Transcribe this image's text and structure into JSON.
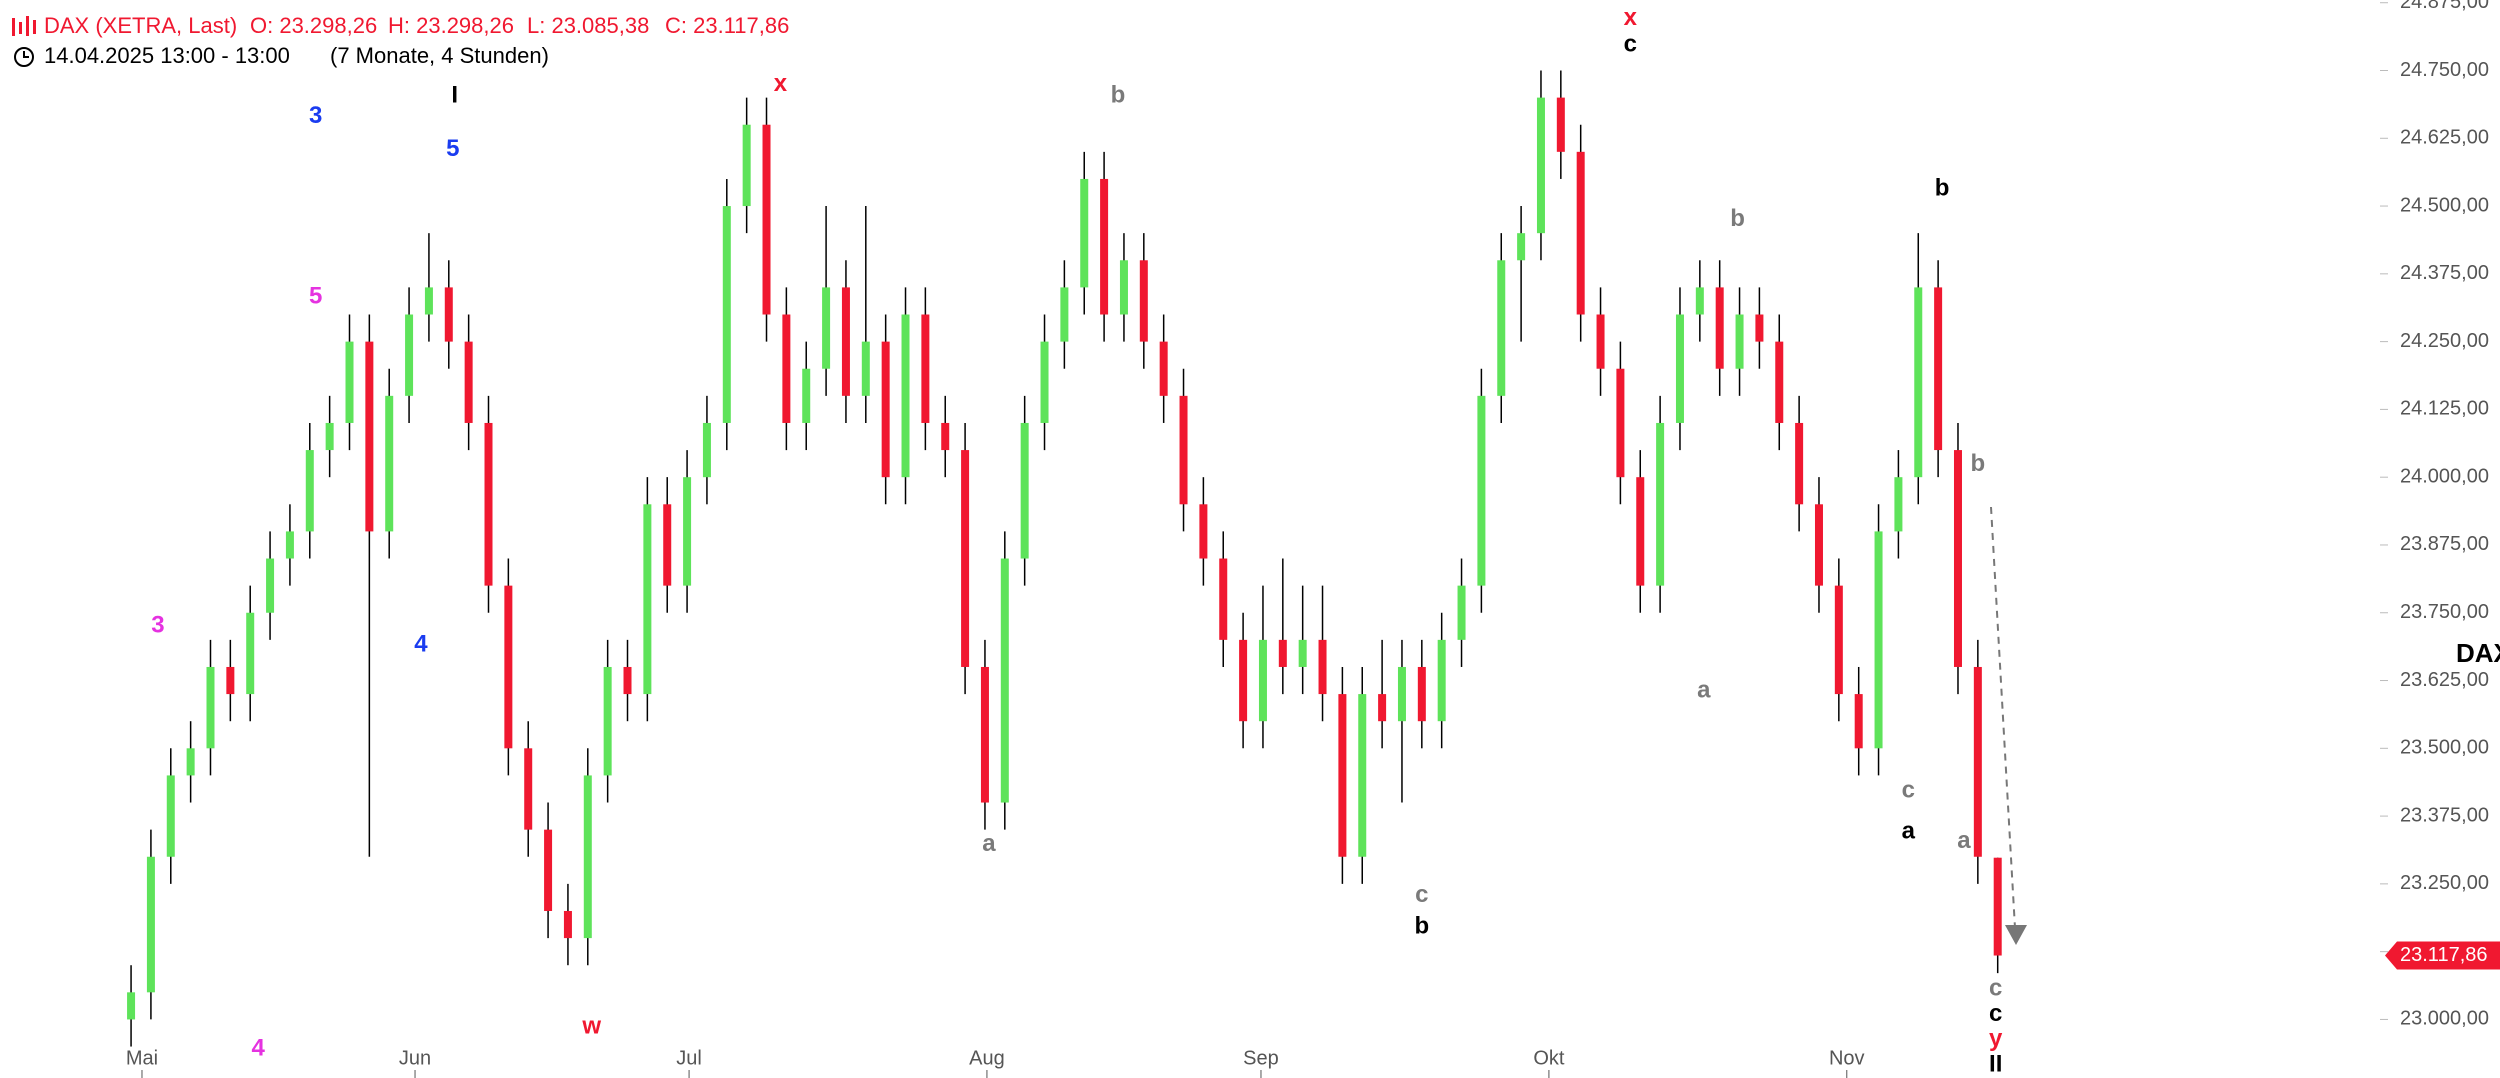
{
  "chart_data": {
    "type": "candlestick",
    "symbol": "DAX (XETRA, Last)",
    "ohlc_labels": [
      "O: 23.298,26",
      "H: 23.298,26",
      "L: 23.085,38",
      "C: 23.117,86"
    ],
    "date_range": "14.04.2025 13:00 - 13:00",
    "span": "(7 Monate, 4 Stunden)",
    "symbol_tag": "DAX",
    "up_color": "#5ee35a",
    "down_color": "#f01830",
    "xlim": [
      -6.6,
      113
    ],
    "xticks": [
      {
        "value": 0.55,
        "label": "Mai"
      },
      {
        "value": 14.3,
        "label": "Jun"
      },
      {
        "value": 28.1,
        "label": "Jul"
      },
      {
        "value": 43.1,
        "label": "Aug"
      },
      {
        "value": 56.9,
        "label": "Sep"
      },
      {
        "value": 71.4,
        "label": "Okt"
      },
      {
        "value": 86.4,
        "label": "Nov"
      }
    ],
    "ylim": [
      22892,
      24880
    ],
    "yticks": [
      {
        "value": 23000,
        "label": "23.000,00"
      },
      {
        "value": 23125,
        "label": "23.125,00"
      },
      {
        "value": 23250,
        "label": "23.250,00"
      },
      {
        "value": 23375,
        "label": "23.375,00"
      },
      {
        "value": 23500,
        "label": "23.500,00"
      },
      {
        "value": 23625,
        "label": "23.625,00"
      },
      {
        "value": 23750,
        "label": "23.750,00"
      },
      {
        "value": 23875,
        "label": "23.875,00"
      },
      {
        "value": 24000,
        "label": "24.000,00"
      },
      {
        "value": 24125,
        "label": "24.125,00"
      },
      {
        "value": 24250,
        "label": "24.250,00"
      },
      {
        "value": 24375,
        "label": "24.375,00"
      },
      {
        "value": 24500,
        "label": "24.500,00"
      },
      {
        "value": 24625,
        "label": "24.625,00"
      },
      {
        "value": 24750,
        "label": "24.750,00"
      },
      {
        "value": 24875,
        "label": "24.875,00"
      }
    ],
    "price_tag": {
      "value": 23117.86,
      "label": "23.117,86"
    },
    "values": [
      [
        23000,
        23100,
        22950,
        23050
      ],
      [
        23050,
        23350,
        23000,
        23300
      ],
      [
        23300,
        23500,
        23250,
        23450
      ],
      [
        23450,
        23550,
        23400,
        23500
      ],
      [
        23500,
        23700,
        23450,
        23650
      ],
      [
        23650,
        23700,
        23550,
        23600
      ],
      [
        23600,
        23800,
        23550,
        23750
      ],
      [
        23750,
        23900,
        23700,
        23850
      ],
      [
        23850,
        23950,
        23800,
        23900
      ],
      [
        23900,
        24100,
        23850,
        24050
      ],
      [
        24050,
        24150,
        24000,
        24100
      ],
      [
        24100,
        24300,
        24050,
        24250
      ],
      [
        24250,
        24300,
        23300,
        23900
      ],
      [
        23900,
        24200,
        23850,
        24150
      ],
      [
        24150,
        24350,
        24100,
        24300
      ],
      [
        24300,
        24450,
        24250,
        24350
      ],
      [
        24350,
        24400,
        24200,
        24250
      ],
      [
        24250,
        24300,
        24050,
        24100
      ],
      [
        24100,
        24150,
        23750,
        23800
      ],
      [
        23800,
        23850,
        23450,
        23500
      ],
      [
        23500,
        23550,
        23300,
        23350
      ],
      [
        23350,
        23400,
        23150,
        23200
      ],
      [
        23200,
        23250,
        23100,
        23150
      ],
      [
        23150,
        23500,
        23100,
        23450
      ],
      [
        23450,
        23700,
        23400,
        23650
      ],
      [
        23650,
        23700,
        23550,
        23600
      ],
      [
        23600,
        24000,
        23550,
        23950
      ],
      [
        23950,
        24000,
        23750,
        23800
      ],
      [
        23800,
        24050,
        23750,
        24000
      ],
      [
        24000,
        24150,
        23950,
        24100
      ],
      [
        24100,
        24550,
        24050,
        24500
      ],
      [
        24500,
        24700,
        24450,
        24650
      ],
      [
        24650,
        24700,
        24250,
        24300
      ],
      [
        24300,
        24350,
        24050,
        24100
      ],
      [
        24100,
        24250,
        24050,
        24200
      ],
      [
        24200,
        24500,
        24150,
        24350
      ],
      [
        24350,
        24400,
        24100,
        24150
      ],
      [
        24150,
        24500,
        24100,
        24250
      ],
      [
        24250,
        24300,
        23950,
        24000
      ],
      [
        24000,
        24350,
        23950,
        24300
      ],
      [
        24300,
        24350,
        24050,
        24100
      ],
      [
        24100,
        24150,
        24000,
        24050
      ],
      [
        24050,
        24100,
        23600,
        23650
      ],
      [
        23650,
        23700,
        23350,
        23400
      ],
      [
        23400,
        23900,
        23350,
        23850
      ],
      [
        23850,
        24150,
        23800,
        24100
      ],
      [
        24100,
        24300,
        24050,
        24250
      ],
      [
        24250,
        24400,
        24200,
        24350
      ],
      [
        24350,
        24600,
        24300,
        24550
      ],
      [
        24550,
        24600,
        24250,
        24300
      ],
      [
        24300,
        24450,
        24250,
        24400
      ],
      [
        24400,
        24450,
        24200,
        24250
      ],
      [
        24250,
        24300,
        24100,
        24150
      ],
      [
        24150,
        24200,
        23900,
        23950
      ],
      [
        23950,
        24000,
        23800,
        23850
      ],
      [
        23850,
        23900,
        23650,
        23700
      ],
      [
        23700,
        23750,
        23500,
        23550
      ],
      [
        23550,
        23800,
        23500,
        23700
      ],
      [
        23700,
        23850,
        23600,
        23650
      ],
      [
        23650,
        23800,
        23600,
        23700
      ],
      [
        23700,
        23800,
        23550,
        23600
      ],
      [
        23600,
        23650,
        23250,
        23300
      ],
      [
        23300,
        23650,
        23250,
        23600
      ],
      [
        23600,
        23700,
        23500,
        23550
      ],
      [
        23550,
        23700,
        23400,
        23650
      ],
      [
        23650,
        23700,
        23500,
        23550
      ],
      [
        23550,
        23750,
        23500,
        23700
      ],
      [
        23700,
        23850,
        23650,
        23800
      ],
      [
        23800,
        24200,
        23750,
        24150
      ],
      [
        24150,
        24450,
        24100,
        24400
      ],
      [
        24400,
        24500,
        24250,
        24450
      ],
      [
        24450,
        24750,
        24400,
        24700
      ],
      [
        24700,
        24750,
        24550,
        24600
      ],
      [
        24600,
        24650,
        24250,
        24300
      ],
      [
        24300,
        24350,
        24150,
        24200
      ],
      [
        24200,
        24250,
        23950,
        24000
      ],
      [
        24000,
        24050,
        23750,
        23800
      ],
      [
        23800,
        24150,
        23750,
        24100
      ],
      [
        24100,
        24350,
        24050,
        24300
      ],
      [
        24300,
        24400,
        24250,
        24350
      ],
      [
        24350,
        24400,
        24150,
        24200
      ],
      [
        24200,
        24350,
        24150,
        24300
      ],
      [
        24300,
        24350,
        24200,
        24250
      ],
      [
        24250,
        24300,
        24050,
        24100
      ],
      [
        24100,
        24150,
        23900,
        23950
      ],
      [
        23950,
        24000,
        23750,
        23800
      ],
      [
        23800,
        23850,
        23550,
        23600
      ],
      [
        23600,
        23650,
        23450,
        23500
      ],
      [
        23500,
        23950,
        23450,
        23900
      ],
      [
        23900,
        24050,
        23850,
        24000
      ],
      [
        24000,
        24450,
        23950,
        24350
      ],
      [
        24350,
        24400,
        24000,
        24050
      ],
      [
        24050,
        24100,
        23600,
        23650
      ],
      [
        23650,
        23700,
        23250,
        23300
      ],
      [
        23298.26,
        23298.26,
        23085.38,
        23117.86
      ]
    ],
    "annotations": [
      {
        "text": "3",
        "color": "#1a3cf0",
        "x": 9.3,
        "y": 24665
      },
      {
        "text": "I",
        "color": "#000000",
        "x": 16.3,
        "y": 24703
      },
      {
        "text": "5",
        "color": "#1a3cf0",
        "x": 16.2,
        "y": 24604
      },
      {
        "text": "5",
        "color": "#e532e0",
        "x": 9.3,
        "y": 24332
      },
      {
        "text": "3",
        "color": "#e532e0",
        "x": 1.35,
        "y": 23725
      },
      {
        "text": "4",
        "color": "#1a3cf0",
        "x": 14.6,
        "y": 23690
      },
      {
        "text": "4",
        "color": "#e532e0",
        "x": 6.4,
        "y": 22945
      },
      {
        "text": "w",
        "color": "#f01830",
        "x": 23.2,
        "y": 22986
      },
      {
        "text": "x",
        "color": "#f01830",
        "x": 32.7,
        "y": 24724
      },
      {
        "text": "b",
        "color": "#7a7a7a",
        "x": 49.7,
        "y": 24703
      },
      {
        "text": "a",
        "color": "#7a7a7a",
        "x": 43.2,
        "y": 23322
      },
      {
        "text": "c",
        "color": "#7a7a7a",
        "x": 65,
        "y": 23228
      },
      {
        "text": "b",
        "color": "#000000",
        "x": 65,
        "y": 23170
      },
      {
        "text": "x",
        "color": "#f01830",
        "x": 75.5,
        "y": 24846
      },
      {
        "text": "c",
        "color": "#000000",
        "x": 75.5,
        "y": 24797
      },
      {
        "text": "b",
        "color": "#7a7a7a",
        "x": 80.9,
        "y": 24475
      },
      {
        "text": "a",
        "color": "#7a7a7a",
        "x": 79.2,
        "y": 23605
      },
      {
        "text": "b",
        "color": "#000000",
        "x": 91.2,
        "y": 24531
      },
      {
        "text": "b",
        "color": "#7a7a7a",
        "x": 93,
        "y": 24023
      },
      {
        "text": "c",
        "color": "#7a7a7a",
        "x": 89.5,
        "y": 23421
      },
      {
        "text": "a",
        "color": "#000000",
        "x": 89.5,
        "y": 23345
      },
      {
        "text": "a",
        "color": "#7a7a7a",
        "x": 92.3,
        "y": 23328
      },
      {
        "text": "c",
        "color": "#7a7a7a",
        "x": 93.9,
        "y": 23056
      },
      {
        "text": "c",
        "color": "#000000",
        "x": 93.9,
        "y": 23009
      },
      {
        "text": "y",
        "color": "#f01830",
        "x": 93.9,
        "y": 22963
      },
      {
        "text": "II",
        "color": "#000000",
        "x": 93.9,
        "y": 22916
      }
    ]
  }
}
